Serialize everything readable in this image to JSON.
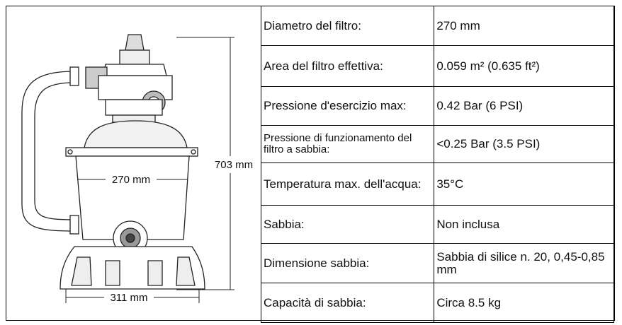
{
  "diagram": {
    "height_label": "703 mm",
    "diameter_label": "270 mm",
    "base_label": "311 mm"
  },
  "table": {
    "rows": [
      [
        "Diametro del filtro:",
        "270 mm"
      ],
      [
        "Area del filtro effettiva:",
        "0.059 m² (0.635 ft²)"
      ],
      [
        "Pressione d'esercizio max:",
        "0.42 Bar (6 PSI)"
      ],
      [
        "Pressione di funzionamento del filtro a sabbia:",
        "<0.25 Bar (3.5 PSI)"
      ],
      [
        "Temperatura max. dell'acqua:",
        "35°C"
      ],
      [
        "Sabbia:",
        "Non inclusa"
      ],
      [
        "Dimensione sabbia:",
        "Sabbia di silice n. 20, 0,45-0,85 mm"
      ],
      [
        "Capacità di sabbia:",
        "Circa 8.5 kg"
      ]
    ]
  }
}
